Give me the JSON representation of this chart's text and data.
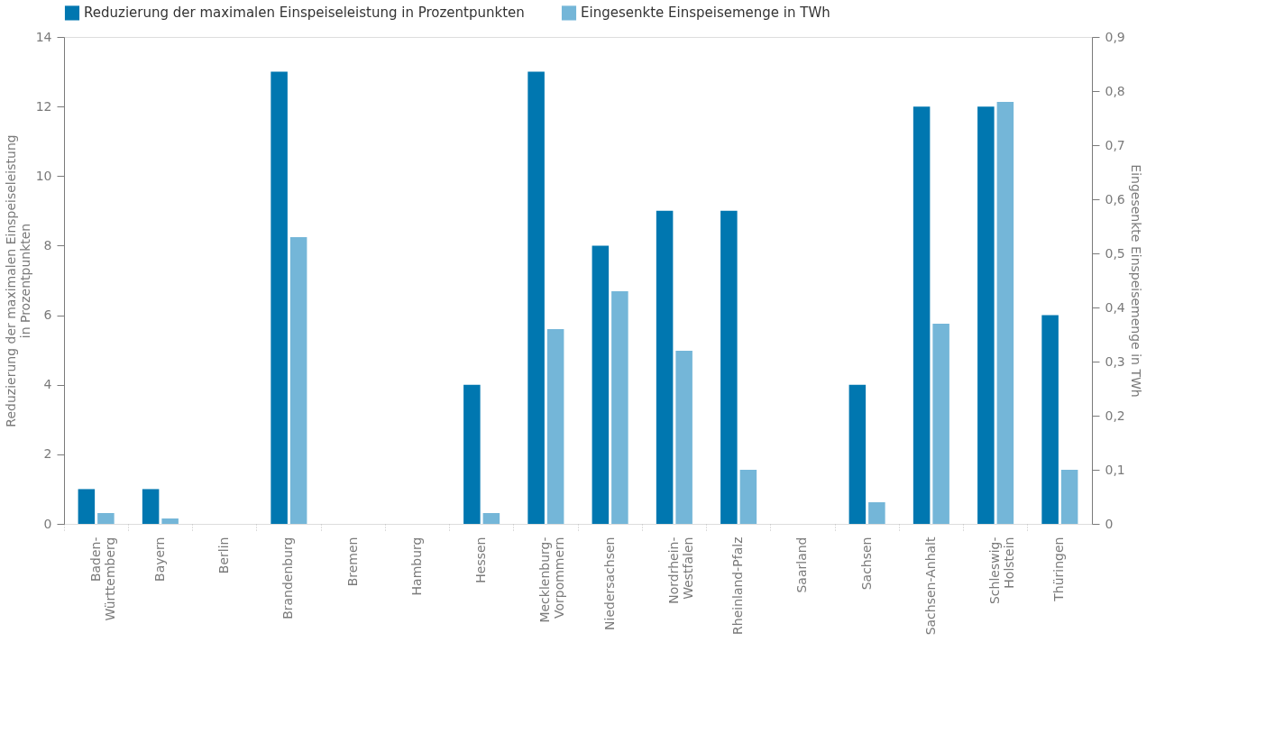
{
  "chart_data": {
    "type": "bar",
    "categories": [
      "Baden-\nWürttemberg",
      "Bayern",
      "Berlin",
      "Brandenburg",
      "Bremen",
      "Hamburg",
      "Hessen",
      "Mecklenburg-\nVorpommern",
      "Niedersachsen",
      "Nordrhein-\nWestfalen",
      "Rheinland-Pfalz",
      "Saarland",
      "Sachsen",
      "Sachsen-Anhalt",
      "Schleswig-\nHolstein",
      "Thüringen"
    ],
    "series": [
      {
        "name": "Reduzierung der maximalen Einspeiseleistung in Prozentpunkten",
        "color": "#0077b0",
        "values": [
          1,
          1,
          0,
          13,
          0,
          0,
          4,
          13,
          8,
          9,
          9,
          0,
          4,
          12,
          12,
          6
        ]
      },
      {
        "name": "Eingesenkte Einspeisemenge in TWh",
        "color": "#74b6d8",
        "axis": "y2",
        "values": [
          0.02,
          0.01,
          0,
          0.53,
          0,
          0,
          0.02,
          0.36,
          0.43,
          0.32,
          0.1,
          0,
          0.04,
          0.37,
          0.78,
          0.1
        ]
      }
    ],
    "ylabel": "Reduzierung der maximalen Einspeiseleistung\nin Prozentpunkten",
    "y2label": "Eingesenkte Einspeisemenge in TWh",
    "ylim": [
      0,
      14
    ],
    "yticks": [
      0,
      2,
      4,
      6,
      8,
      10,
      12,
      14
    ],
    "y2lim": [
      0,
      0.9
    ],
    "y2ticks": [
      {
        "value": 0,
        "label": "0"
      },
      {
        "value": 0.1,
        "label": "0,1"
      },
      {
        "value": 0.2,
        "label": "0,2"
      },
      {
        "value": 0.3,
        "label": "0,3"
      },
      {
        "value": 0.4,
        "label": "0,4"
      },
      {
        "value": 0.5,
        "label": "0,5"
      },
      {
        "value": 0.6,
        "label": "0,6"
      },
      {
        "value": 0.7,
        "label": "0,7"
      },
      {
        "value": 0.8,
        "label": "0,8"
      },
      {
        "value": 0.9,
        "label": "0,9"
      }
    ],
    "grid": false,
    "legend": "top"
  }
}
